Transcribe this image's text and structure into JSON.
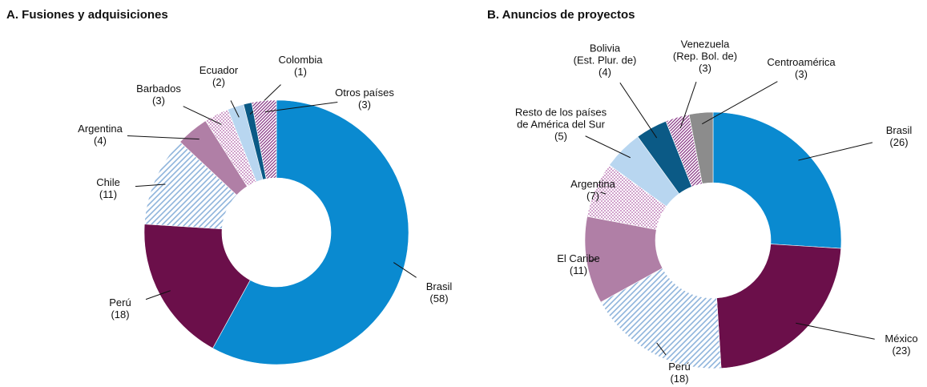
{
  "chart_data": [
    {
      "type": "donut",
      "title": "A. Fusiones y adquisiciones",
      "categories": [
        "Brasil",
        "Perú",
        "Chile",
        "Argentina",
        "Barbados",
        "Ecuador",
        "Colombia",
        "Otros países"
      ],
      "values": [
        58,
        18,
        11,
        4,
        3,
        2,
        1,
        3
      ],
      "value_labels": [
        "(58)",
        "(18)",
        "(11)",
        "(4)",
        "(3)",
        "(2)",
        "(1)",
        "(3)"
      ],
      "colors": [
        "#0a8ad0",
        "#6b0f4a",
        "#8fb4dc",
        "#b07fa6",
        "#b060a8",
        "#b8d6f0",
        "#0b5a86",
        "#8a3a88"
      ],
      "patterns": [
        "solid",
        "solid",
        "hatch",
        "solid",
        "dots",
        "solid",
        "solid",
        "crosshatch"
      ]
    },
    {
      "type": "donut",
      "title": "B. Anuncios de proyectos",
      "categories": [
        "Brasil",
        "México",
        "Perú",
        "El Caribe",
        "Argentina",
        "Resto de los países\nde América del Sur",
        "Bolivia\n(Est. Plur. de)",
        "Venezuela\n(Rep. Bol. de)",
        "Centroamérica"
      ],
      "values": [
        26,
        23,
        18,
        11,
        7,
        5,
        4,
        3,
        3
      ],
      "value_labels": [
        "(26)",
        "(23)",
        "(18)",
        "(11)",
        "(7)",
        "(5)",
        "(4)",
        "(3)",
        "(3)"
      ],
      "colors": [
        "#0a8ad0",
        "#6b0f4a",
        "#8fb4dc",
        "#b07fa6",
        "#b060a8",
        "#b8d6f0",
        "#0b5a86",
        "#8a3a88",
        "#8c8c8c"
      ],
      "patterns": [
        "solid",
        "solid",
        "hatch",
        "solid",
        "dots",
        "solid",
        "solid",
        "crosshatch",
        "solid"
      ]
    }
  ]
}
